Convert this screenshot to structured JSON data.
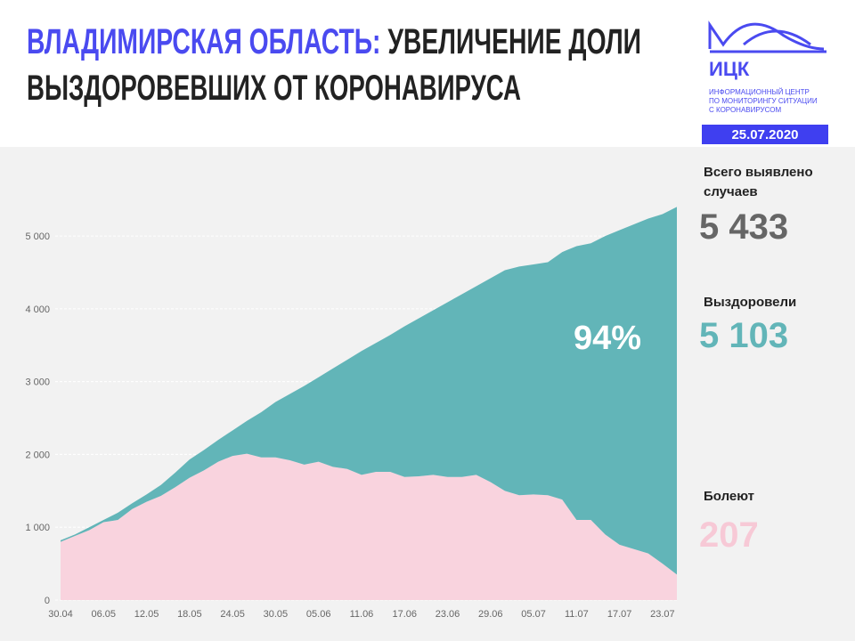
{
  "header": {
    "title_highlight": "ВЛАДИМИРСКАЯ ОБЛАСТЬ:",
    "title_line1": "УВЕЛИЧЕНИЕ ДОЛИ",
    "title_line2": "ВЫЗДОРОВЕВШИХ ОТ КОРОНАВИРУСА",
    "logo_name": "ИЦК",
    "logo_caption": [
      "ИНФОРМАЦИОННЫЙ ЦЕНТР",
      "ПО МОНИТОРИНГУ СИТУАЦИИ",
      "С КОРОНАВИРУСОМ"
    ],
    "date": "25.07.2020"
  },
  "panel": [
    {
      "label": [
        "Всего выявлено",
        "случаев"
      ],
      "value": "5 433",
      "color": "#666666"
    },
    {
      "label": [
        "Выздоровели"
      ],
      "value": "5 103",
      "color": "#62b5b8"
    },
    {
      "label": [
        "Болеют"
      ],
      "value": "207",
      "color": "#f7c9d6"
    }
  ],
  "chart_data": {
    "type": "stacked_area",
    "categories": [
      "30.04",
      null,
      null,
      "06.05",
      null,
      null,
      "12.05",
      null,
      null,
      "18.05",
      null,
      null,
      "24.05",
      null,
      null,
      "30.05",
      null,
      null,
      "05.06",
      null,
      null,
      "11.06",
      null,
      null,
      "17.06",
      null,
      null,
      "23.06",
      null,
      null,
      "29.06",
      null,
      null,
      "05.07",
      null,
      null,
      "11.07",
      null,
      null,
      "17.07",
      null,
      null,
      "23.07",
      null
    ],
    "series": [
      {
        "color": "#f9d3de",
        "values": [
          800,
          880,
          960,
          1070,
          1100,
          1250,
          1350,
          1430,
          1550,
          1680,
          1780,
          1900,
          1980,
          2010,
          1960,
          1960,
          1920,
          1860,
          1900,
          1830,
          1800,
          1720,
          1760,
          1760,
          1690,
          1700,
          1720,
          1690,
          1690,
          1720,
          1620,
          1500,
          1440,
          1450,
          1440,
          1380,
          1100,
          1100,
          900,
          760,
          700,
          640,
          500,
          350
        ]
      },
      {
        "color": "#62b5b8",
        "values": [
          20,
          20,
          40,
          30,
          100,
          80,
          100,
          150,
          200,
          250,
          280,
          300,
          350,
          450,
          620,
          760,
          910,
          1080,
          1160,
          1350,
          1500,
          1700,
          1770,
          1880,
          2070,
          2170,
          2260,
          2400,
          2510,
          2590,
          2800,
          3030,
          3140,
          3160,
          3200,
          3400,
          3760,
          3800,
          4100,
          4320,
          4460,
          4600,
          4800,
          5050
        ]
      }
    ],
    "annotation": "94%",
    "ylim": [
      0,
      5600
    ],
    "yticks": [
      0,
      {
        "value": 1000,
        "label": "1 000"
      },
      {
        "value": 2000,
        "label": "2 000"
      },
      {
        "value": 3000,
        "label": "3 000"
      },
      {
        "value": 4000,
        "label": "4 000"
      },
      {
        "value": 5000,
        "label": "5 000"
      }
    ],
    "grid": true
  }
}
